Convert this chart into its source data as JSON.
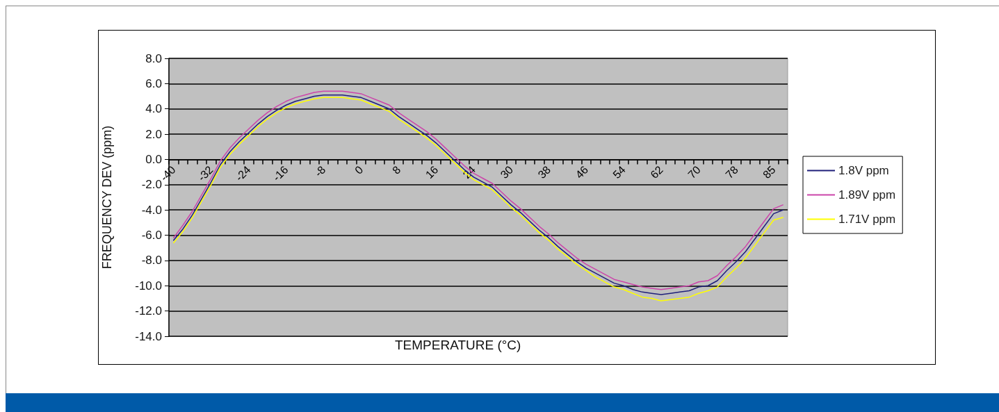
{
  "chart_data": {
    "type": "line",
    "xlabel": "TEMPERATURE (°C)",
    "ylabel": "FREQUENCY DEV (ppm)",
    "categories": [
      "-40",
      null,
      null,
      null,
      "-32",
      null,
      null,
      null,
      "-24",
      null,
      null,
      null,
      "-16",
      null,
      null,
      null,
      "-8",
      null,
      null,
      null,
      "0",
      null,
      null,
      null,
      "8",
      null,
      null,
      null,
      "16",
      null,
      null,
      null,
      "24",
      null,
      null,
      null,
      "30",
      null,
      null,
      null,
      "38",
      null,
      null,
      null,
      "46",
      null,
      null,
      null,
      "54",
      null,
      null,
      null,
      "62",
      null,
      null,
      null,
      "70",
      null,
      null,
      null,
      "78",
      null,
      null,
      null,
      "85",
      null
    ],
    "series": [
      {
        "name": "1.8V ppm",
        "color": "#1f1f7a",
        "values": [
          -6.4,
          -5.5,
          -4.4,
          -3.1,
          -1.8,
          -0.4,
          0.6,
          1.4,
          2.1,
          2.8,
          3.4,
          3.9,
          4.3,
          4.6,
          4.8,
          5.0,
          5.1,
          5.1,
          5.1,
          5.0,
          4.9,
          4.6,
          4.3,
          4.0,
          3.4,
          2.9,
          2.4,
          1.9,
          1.3,
          0.6,
          -0.1,
          -0.8,
          -1.4,
          -1.8,
          -2.2,
          -2.9,
          -3.6,
          -4.2,
          -4.9,
          -5.6,
          -6.2,
          -6.9,
          -7.5,
          -8.1,
          -8.6,
          -9.0,
          -9.4,
          -9.8,
          -10.0,
          -10.3,
          -10.5,
          -10.6,
          -10.7,
          -10.6,
          -10.5,
          -10.4,
          -10.1,
          -10.0,
          -9.6,
          -8.8,
          -8.1,
          -7.3,
          -6.3,
          -5.3,
          -4.3,
          -4.0
        ]
      },
      {
        "name": "1.89V ppm",
        "color": "#cc44aa",
        "values": [
          -6.2,
          -5.2,
          -4.1,
          -2.8,
          -1.5,
          -0.1,
          0.9,
          1.7,
          2.4,
          3.1,
          3.7,
          4.2,
          4.6,
          4.9,
          5.1,
          5.3,
          5.4,
          5.4,
          5.4,
          5.3,
          5.2,
          4.9,
          4.6,
          4.3,
          3.7,
          3.2,
          2.7,
          2.2,
          1.6,
          0.9,
          0.2,
          -0.5,
          -1.1,
          -1.5,
          -1.9,
          -2.6,
          -3.3,
          -3.9,
          -4.6,
          -5.3,
          -5.9,
          -6.6,
          -7.2,
          -7.8,
          -8.3,
          -8.7,
          -9.1,
          -9.5,
          -9.7,
          -9.9,
          -10.1,
          -10.2,
          -10.3,
          -10.2,
          -10.1,
          -10.0,
          -9.7,
          -9.6,
          -9.2,
          -8.4,
          -7.7,
          -6.9,
          -5.9,
          -4.9,
          -3.9,
          -3.6
        ]
      },
      {
        "name": "1.71V ppm",
        "color": "#ffff00",
        "values": [
          -6.6,
          -5.7,
          -4.6,
          -3.3,
          -2.0,
          -0.6,
          0.4,
          1.2,
          1.9,
          2.6,
          3.2,
          3.7,
          4.1,
          4.4,
          4.6,
          4.8,
          4.9,
          4.9,
          4.9,
          4.8,
          4.7,
          4.4,
          4.1,
          3.8,
          3.2,
          2.7,
          2.2,
          1.7,
          1.1,
          0.4,
          -0.3,
          -1.0,
          -1.6,
          -2.0,
          -2.4,
          -3.1,
          -3.8,
          -4.4,
          -5.1,
          -5.8,
          -6.4,
          -7.1,
          -7.7,
          -8.3,
          -8.8,
          -9.3,
          -9.7,
          -10.1,
          -10.3,
          -10.6,
          -10.9,
          -11.0,
          -11.2,
          -11.1,
          -11.0,
          -10.9,
          -10.6,
          -10.4,
          -10.1,
          -9.3,
          -8.6,
          -7.8,
          -6.8,
          -5.8,
          -4.8,
          -4.6
        ]
      }
    ],
    "ylim": [
      -14,
      8
    ],
    "yticks": [
      {
        "value": -14,
        "label": "-14.0"
      },
      {
        "value": -12,
        "label": "-12.0"
      },
      {
        "value": -10,
        "label": "-10.0"
      },
      {
        "value": -8,
        "label": "-8.0"
      },
      {
        "value": -6,
        "label": "-6.0"
      },
      {
        "value": -4,
        "label": "-4.0"
      },
      {
        "value": -2,
        "label": "-2.0"
      },
      {
        "value": 0,
        "label": "0.0"
      },
      {
        "value": 2,
        "label": "2.0"
      },
      {
        "value": 4,
        "label": "4.0"
      },
      {
        "value": 6,
        "label": "6.0"
      },
      {
        "value": 8,
        "label": "8.0"
      }
    ],
    "grid": "y",
    "legend": "right",
    "marker": "none",
    "line_style": "solid"
  }
}
